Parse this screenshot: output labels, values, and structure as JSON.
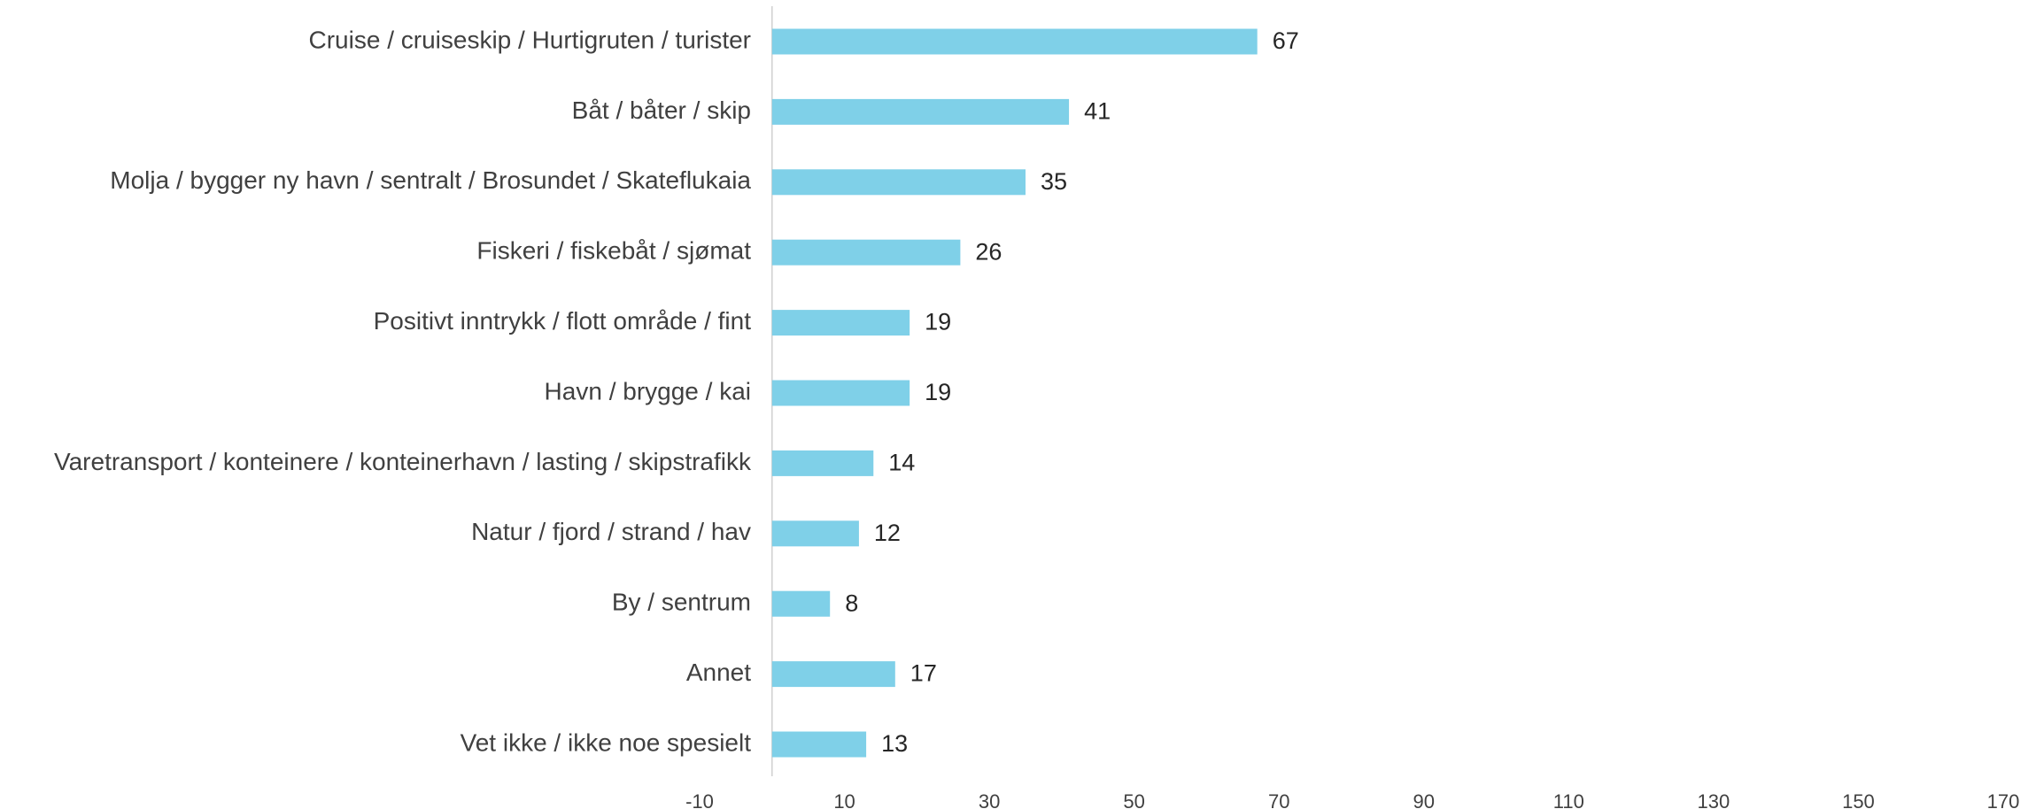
{
  "chart_data": {
    "type": "bar",
    "orientation": "horizontal",
    "categories": [
      "Cruise / cruiseskip / Hurtigruten / turister",
      "Båt / båter / skip",
      "Molja / bygger ny havn / sentralt / Brosundet / Skateflukaia",
      "Fiskeri / fiskebåt / sjømat",
      "Positivt inntrykk / flott område / fint",
      "Havn / brygge / kai",
      "Varetransport / konteinere / konteinerhavn / lasting / skipstrafikk",
      "Natur / fjord / strand / hav",
      "By / sentrum",
      "Annet",
      "Vet ikke / ikke noe spesielt"
    ],
    "values": [
      67,
      41,
      35,
      26,
      19,
      19,
      14,
      12,
      8,
      17,
      13
    ],
    "color": "#7fd0e8",
    "xlim": [
      -10,
      170
    ],
    "xticks": [
      -10,
      10,
      30,
      50,
      70,
      90,
      110,
      130,
      150,
      170
    ]
  }
}
